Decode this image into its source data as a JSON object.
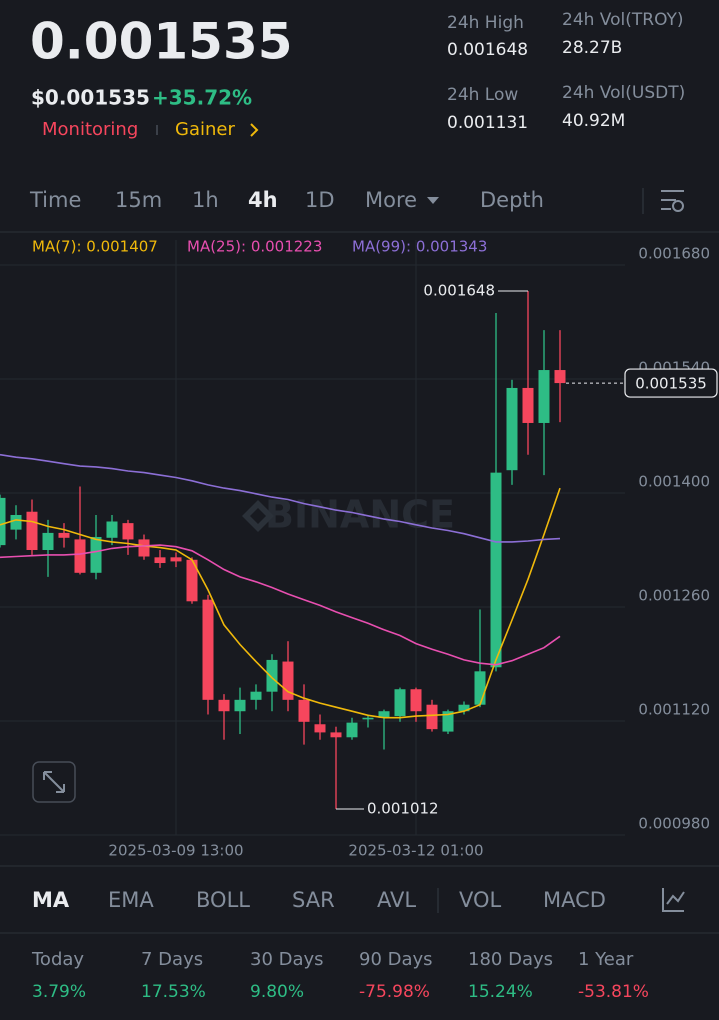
{
  "header": {
    "price": "0.001535",
    "usd_price": "$0.001535",
    "change": "+35.72%",
    "tags": [
      "Monitoring",
      "Gainer"
    ],
    "stats": [
      {
        "label": "24h High",
        "value": "0.001648"
      },
      {
        "label": "24h Vol(TROY)",
        "value": "28.27B"
      },
      {
        "label": "24h Low",
        "value": "0.001131"
      },
      {
        "label": "24h Vol(USDT)",
        "value": "40.92M"
      }
    ]
  },
  "intervals": [
    "Time",
    "15m",
    "1h",
    "4h",
    "1D",
    "More",
    "Depth"
  ],
  "active_interval": "4h",
  "chart": {
    "type": "candlestick",
    "watermark": "BINANCE",
    "categories": [
      null,
      null,
      null,
      null,
      null,
      null,
      null,
      null,
      null,
      null,
      null,
      "2025-03-09 13:00",
      null,
      null,
      null,
      null,
      null,
      null,
      null,
      null,
      null,
      null,
      null,
      null,
      null,
      null,
      "2025-03-12 01:00",
      null,
      null,
      null,
      null,
      null,
      null,
      null,
      null,
      null
    ],
    "candles": {
      "open": [
        0.001336,
        0.001355,
        0.001377,
        0.00133,
        0.001351,
        0.001343,
        0.001302,
        0.001345,
        0.001363,
        0.001343,
        0.001321,
        0.001321,
        0.001318,
        0.001269,
        0.001146,
        0.001132,
        0.001146,
        0.001156,
        0.001193,
        0.001146,
        0.001116,
        0.001106,
        0.0011,
        0.001122,
        0.001124,
        0.001126,
        0.001159,
        0.00114,
        0.001107,
        0.001132,
        0.00114,
        0.001186,
        0.001428,
        0.001529,
        0.001486,
        0.001551
      ],
      "high": [
        0.001398,
        0.001385,
        0.001392,
        0.001367,
        0.001363,
        0.001408,
        0.001373,
        0.001373,
        0.001367,
        0.001349,
        0.00133,
        0.001327,
        0.001321,
        0.001275,
        0.001153,
        0.001161,
        0.001165,
        0.001202,
        0.001218,
        0.001165,
        0.001128,
        0.001113,
        0.001124,
        0.001128,
        0.001134,
        0.001161,
        0.001161,
        0.001146,
        0.001134,
        0.001144,
        0.001257,
        0.001621,
        0.001539,
        0.001648,
        0.0016,
        0.0016
      ],
      "low": [
        0.001333,
        0.001343,
        0.001324,
        0.001297,
        0.001333,
        0.0013,
        0.001294,
        0.001336,
        0.001324,
        0.001318,
        0.001308,
        0.001309,
        0.001264,
        0.001128,
        0.001097,
        0.001104,
        0.001134,
        0.001132,
        0.001132,
        0.001091,
        0.001097,
        0.001012,
        0.001097,
        0.001112,
        0.001085,
        0.001119,
        0.001119,
        0.001107,
        0.001104,
        0.001128,
        0.001137,
        0.001181,
        0.00141,
        0.001447,
        0.001422,
        0.001487
      ],
      "close": [
        0.001394,
        0.001373,
        0.00133,
        0.001351,
        0.001345,
        0.001302,
        0.001346,
        0.001365,
        0.001343,
        0.001322,
        0.001314,
        0.001316,
        0.001267,
        0.001146,
        0.001132,
        0.001146,
        0.001156,
        0.001195,
        0.001146,
        0.001119,
        0.001106,
        0.0011,
        0.001118,
        0.001124,
        0.001132,
        0.001159,
        0.001132,
        0.00111,
        0.001132,
        0.00114,
        0.001181,
        0.001425,
        0.001529,
        0.001486,
        0.001551,
        0.001535
      ]
    },
    "up_color": "#2ebd85",
    "down_color": "#f6465d",
    "series": [
      {
        "label": "MA(7): 0.001407",
        "color": "#f0b90b",
        "values": [
          0.001361,
          0.001367,
          0.001365,
          0.001359,
          0.001355,
          0.001349,
          0.001343,
          0.00134,
          0.001338,
          0.001335,
          0.001333,
          0.00133,
          0.001318,
          0.001281,
          0.001238,
          0.001214,
          0.001193,
          0.001173,
          0.001156,
          0.001148,
          0.001142,
          0.001137,
          0.001132,
          0.001127,
          0.001124,
          0.001124,
          0.001126,
          0.001127,
          0.001128,
          0.001132,
          0.00114,
          0.001195,
          0.001244,
          0.001294,
          0.001349,
          0.001406
        ]
      },
      {
        "label": "MA(25): 0.001223",
        "color": "#e84fb0",
        "values": [
          0.001321,
          0.001322,
          0.001323,
          0.001324,
          0.001324,
          0.001325,
          0.001328,
          0.001332,
          0.001334,
          0.001335,
          0.001336,
          0.001334,
          0.001329,
          0.001318,
          0.001306,
          0.001297,
          0.001291,
          0.001284,
          0.001276,
          0.001269,
          0.001262,
          0.001254,
          0.001247,
          0.00124,
          0.001232,
          0.001225,
          0.001215,
          0.001208,
          0.001202,
          0.001195,
          0.001191,
          0.001189,
          0.001194,
          0.001202,
          0.00121,
          0.001224
        ]
      },
      {
        "label": "MA(99): 0.001343",
        "color": "#8c6fd6",
        "values": [
          0.001447,
          0.001444,
          0.001442,
          0.001439,
          0.001436,
          0.001433,
          0.001432,
          0.00143,
          0.001427,
          0.001425,
          0.001422,
          0.001419,
          0.001415,
          0.00141,
          0.001406,
          0.001403,
          0.001399,
          0.001395,
          0.001392,
          0.001387,
          0.001383,
          0.001379,
          0.001376,
          0.001372,
          0.001368,
          0.001365,
          0.001361,
          0.001357,
          0.001354,
          0.00135,
          0.001345,
          0.00134,
          0.00134,
          0.001341,
          0.001343,
          0.001344
        ]
      }
    ],
    "ylim": [
      0.00098,
      0.00168
    ],
    "yticks": [
      {
        "value": 0.00168,
        "label": "0.001680"
      },
      {
        "value": 0.00154,
        "label": "0.001540"
      },
      {
        "value": 0.0014,
        "label": "0.001400"
      },
      {
        "value": 0.00126,
        "label": "0.001260"
      },
      {
        "value": 0.00112,
        "label": "0.001120"
      },
      {
        "value": 0.00098,
        "label": "0.000980"
      }
    ],
    "grid": true
  },
  "indicators": [
    "MA",
    "EMA",
    "BOLL",
    "SAR",
    "AVL",
    "VOL",
    "MACD"
  ],
  "active_indicator": "MA",
  "performance": [
    {
      "label": "Today",
      "value": "3.79%"
    },
    {
      "label": "7 Days",
      "value": "17.53%"
    },
    {
      "label": "30 Days",
      "value": "9.80%"
    },
    {
      "label": "90 Days",
      "value": "-75.98%"
    },
    {
      "label": "180 Days",
      "value": "15.24%"
    },
    {
      "label": "1 Year",
      "value": "-53.81%"
    }
  ]
}
